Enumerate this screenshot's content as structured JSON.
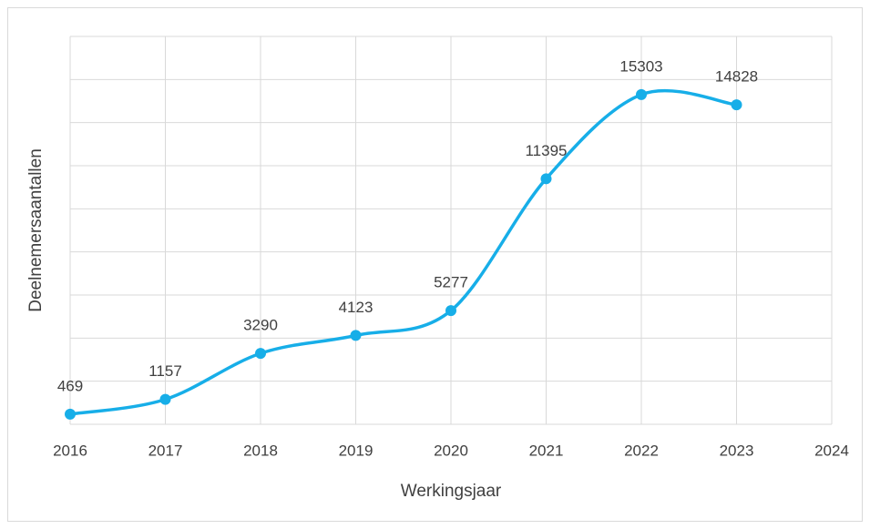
{
  "chart_data": {
    "type": "line",
    "x_label": "Werkingsjaar",
    "y_label": "Deelnemersaantallen",
    "x": [
      2016,
      2017,
      2018,
      2019,
      2020,
      2021,
      2022,
      2023
    ],
    "values": [
      469,
      1157,
      3290,
      4123,
      5277,
      11395,
      15303,
      14828
    ],
    "color": "#17aee8",
    "smooth": true,
    "xlim": [
      2016,
      2024
    ],
    "xticks": [
      2016,
      2017,
      2018,
      2019,
      2020,
      2021,
      2022,
      2023,
      2024
    ],
    "ylim": [
      0,
      18000
    ],
    "yticks": [
      0,
      2000,
      4000,
      6000,
      8000,
      10000,
      12000,
      14000,
      16000,
      18000
    ],
    "grid": true
  }
}
